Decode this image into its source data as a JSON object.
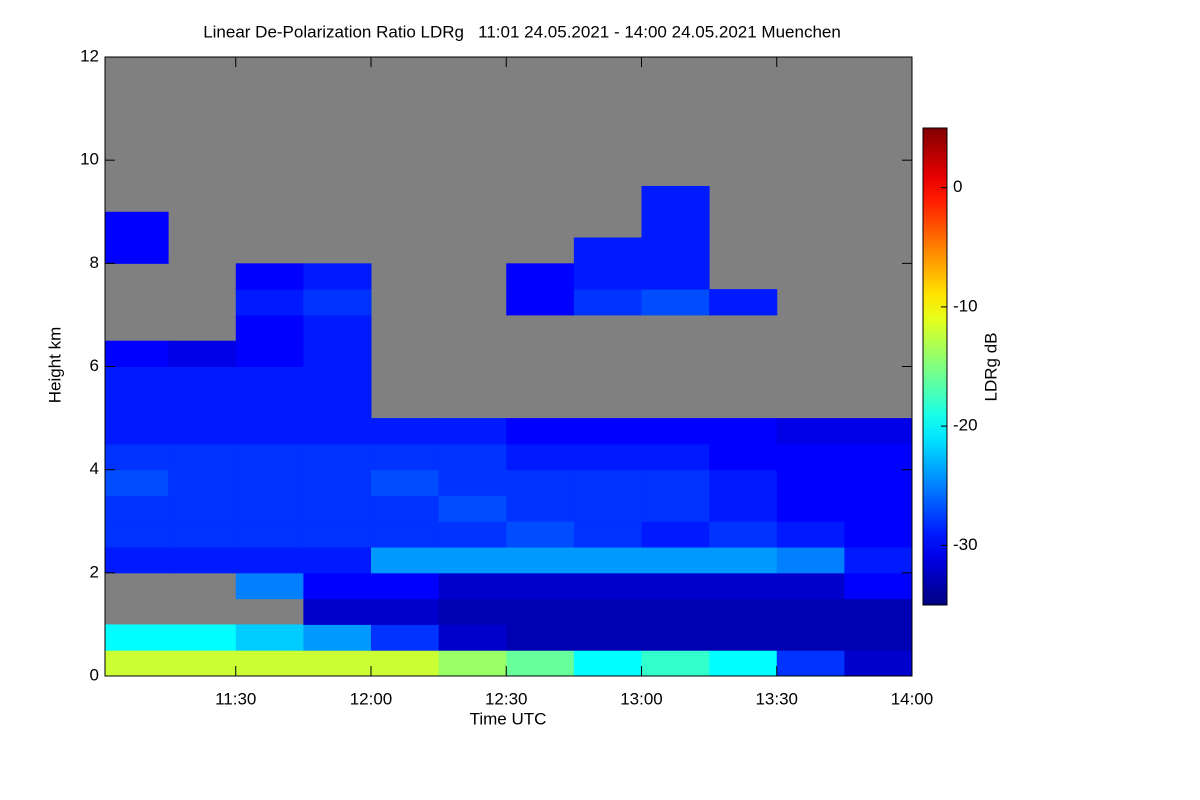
{
  "chart_data": {
    "type": "heatmap",
    "title": "Linear De-Polarization Ratio LDRg   11:01 24.05.2021 - 14:00 24.05.2021 Muenchen",
    "x_label": "Time UTC",
    "y_label": "Height km",
    "colorbar_label": "LDRg dB",
    "xlim": [
      "11:01",
      "14:00"
    ],
    "xticks": [
      "11:30",
      "12:00",
      "12:30",
      "13:00",
      "13:30",
      "14:00"
    ],
    "x_bins": [
      "11:01",
      "11:15",
      "11:30",
      "11:45",
      "12:00",
      "12:15",
      "12:30",
      "12:45",
      "13:00",
      "13:15",
      "13:30",
      "13:45",
      "14:00"
    ],
    "ylim": [
      0,
      12
    ],
    "yticks": [
      0,
      2,
      4,
      6,
      8,
      10,
      12
    ],
    "y_bins": [
      0,
      0.5,
      1,
      1.5,
      2,
      2.5,
      3,
      3.5,
      4,
      4.5,
      5,
      5.5,
      6,
      6.5,
      7,
      7.5,
      8,
      8.5,
      9,
      9.5
    ],
    "zlim": [
      -35,
      5
    ],
    "zticks": [
      0,
      -10,
      -20,
      -30
    ],
    "z": [
      [
        -12,
        -12,
        -12,
        -12,
        -12,
        -14,
        -16,
        -20,
        -18,
        -20,
        -28,
        -32
      ],
      [
        -20,
        -20,
        -22,
        -24,
        -28,
        -32,
        -33,
        -33,
        -33,
        -33,
        -33,
        -33
      ],
      [
        null,
        null,
        null,
        -32,
        -32,
        -33,
        -33,
        -33,
        -33,
        -33,
        -33,
        -33
      ],
      [
        null,
        null,
        -25,
        -30,
        -30,
        -32,
        -32,
        -32,
        -32,
        -32,
        -32,
        -30
      ],
      [
        -29,
        -29,
        -29,
        -29,
        -24,
        -24,
        -24,
        -24,
        -24,
        -24,
        -25,
        -29
      ],
      [
        -28,
        -28,
        -28,
        -28,
        -28,
        -28,
        -27,
        -28,
        -29,
        -28,
        -29,
        -30
      ],
      [
        -28,
        -28,
        -28,
        -28,
        -28,
        -27,
        -28,
        -28,
        -28,
        -29,
        -30,
        -30
      ],
      [
        -27,
        -28,
        -28,
        -28,
        -27,
        -28,
        -28,
        -28,
        -28,
        -29,
        -30,
        -30
      ],
      [
        -28,
        -28,
        -28,
        -28,
        -28,
        -28,
        -29,
        -29,
        -29,
        -30,
        -30,
        -30
      ],
      [
        -29,
        -29,
        -29,
        -29,
        -29,
        -29,
        -30,
        -30,
        -30,
        -30,
        -31,
        -31
      ],
      [
        -29,
        -29,
        -29,
        -29,
        null,
        null,
        null,
        null,
        null,
        null,
        null,
        null
      ],
      [
        -29,
        -29,
        -29,
        -29,
        null,
        null,
        null,
        null,
        null,
        null,
        null,
        null
      ],
      [
        -30,
        -31,
        -30,
        -29,
        null,
        null,
        null,
        null,
        null,
        null,
        null,
        null
      ],
      [
        null,
        null,
        -30,
        -29,
        null,
        null,
        null,
        null,
        null,
        null,
        null,
        null
      ],
      [
        null,
        null,
        -29,
        -28,
        null,
        null,
        -30,
        -28,
        -27,
        -29,
        null,
        null
      ],
      [
        null,
        null,
        -30,
        -29,
        null,
        null,
        -30,
        -29,
        -29,
        null,
        null,
        null
      ],
      [
        -30,
        null,
        null,
        null,
        null,
        null,
        null,
        -29,
        -29,
        null,
        null,
        null
      ],
      [
        -30,
        null,
        null,
        null,
        null,
        null,
        null,
        null,
        -29,
        null,
        null,
        null
      ],
      [
        null,
        null,
        null,
        null,
        null,
        null,
        null,
        null,
        -29,
        null,
        null,
        null
      ]
    ],
    "missing_color": "#808080"
  }
}
